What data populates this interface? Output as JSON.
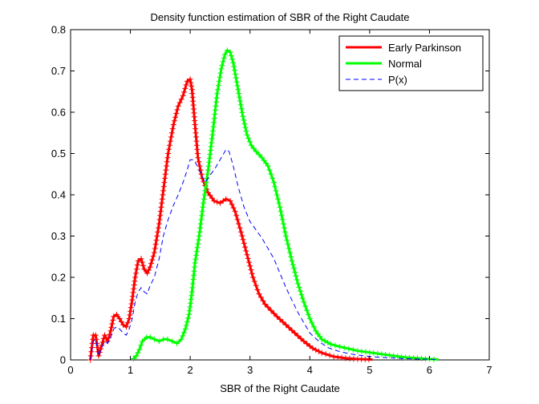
{
  "chart_data": {
    "type": "line",
    "title": "Density function estimation of SBR of the Right Caudate",
    "xlabel": "SBR of the Right Caudate",
    "ylabel": "",
    "xlim": [
      0,
      7
    ],
    "ylim": [
      0,
      0.8
    ],
    "xticks": [
      "0",
      "1",
      "2",
      "3",
      "4",
      "5",
      "6",
      "7"
    ],
    "yticks": [
      "0",
      "0.1",
      "0.2",
      "0.3",
      "0.4",
      "0.5",
      "0.6",
      "0.7",
      "0.8"
    ],
    "grid": false,
    "legend_position": "top-right",
    "series": [
      {
        "name": "Early Parkinson",
        "color": "#ff0000",
        "style": "solid-with-plus-markers",
        "points": [
          [
            0.33,
            0
          ],
          [
            0.38,
            0.06
          ],
          [
            0.42,
            0.06
          ],
          [
            0.47,
            0.01
          ],
          [
            0.52,
            0.035
          ],
          [
            0.57,
            0.06
          ],
          [
            0.62,
            0.045
          ],
          [
            0.67,
            0.07
          ],
          [
            0.72,
            0.105
          ],
          [
            0.77,
            0.11
          ],
          [
            0.82,
            0.1
          ],
          [
            0.88,
            0.085
          ],
          [
            0.93,
            0.08
          ],
          [
            0.98,
            0.1
          ],
          [
            1.03,
            0.145
          ],
          [
            1.08,
            0.2
          ],
          [
            1.13,
            0.24
          ],
          [
            1.18,
            0.245
          ],
          [
            1.23,
            0.22
          ],
          [
            1.28,
            0.21
          ],
          [
            1.33,
            0.225
          ],
          [
            1.4,
            0.26
          ],
          [
            1.48,
            0.33
          ],
          [
            1.55,
            0.41
          ],
          [
            1.63,
            0.5
          ],
          [
            1.72,
            0.57
          ],
          [
            1.8,
            0.615
          ],
          [
            1.88,
            0.64
          ],
          [
            1.95,
            0.675
          ],
          [
            2.0,
            0.68
          ],
          [
            2.03,
            0.655
          ],
          [
            2.08,
            0.57
          ],
          [
            2.13,
            0.49
          ],
          [
            2.2,
            0.44
          ],
          [
            2.3,
            0.405
          ],
          [
            2.4,
            0.385
          ],
          [
            2.5,
            0.38
          ],
          [
            2.6,
            0.39
          ],
          [
            2.67,
            0.385
          ],
          [
            2.75,
            0.36
          ],
          [
            2.85,
            0.31
          ],
          [
            2.95,
            0.255
          ],
          [
            3.05,
            0.2
          ],
          [
            3.15,
            0.16
          ],
          [
            3.25,
            0.135
          ],
          [
            3.35,
            0.12
          ],
          [
            3.45,
            0.105
          ],
          [
            3.6,
            0.085
          ],
          [
            3.75,
            0.065
          ],
          [
            3.9,
            0.045
          ],
          [
            4.05,
            0.028
          ],
          [
            4.2,
            0.017
          ],
          [
            4.4,
            0.008
          ],
          [
            4.6,
            0.004
          ],
          [
            4.8,
            0.002
          ],
          [
            5.05,
            0.001
          ]
        ]
      },
      {
        "name": "Normal",
        "color": "#00ff00",
        "style": "solid-with-plus-markers",
        "points": [
          [
            1.05,
            0.003
          ],
          [
            1.1,
            0.01
          ],
          [
            1.15,
            0.025
          ],
          [
            1.2,
            0.045
          ],
          [
            1.27,
            0.055
          ],
          [
            1.33,
            0.055
          ],
          [
            1.4,
            0.05
          ],
          [
            1.48,
            0.045
          ],
          [
            1.55,
            0.05
          ],
          [
            1.62,
            0.05
          ],
          [
            1.7,
            0.045
          ],
          [
            1.78,
            0.04
          ],
          [
            1.85,
            0.05
          ],
          [
            1.92,
            0.075
          ],
          [
            1.98,
            0.11
          ],
          [
            2.03,
            0.165
          ],
          [
            2.08,
            0.235
          ],
          [
            2.15,
            0.3
          ],
          [
            2.22,
            0.38
          ],
          [
            2.3,
            0.46
          ],
          [
            2.38,
            0.555
          ],
          [
            2.45,
            0.645
          ],
          [
            2.52,
            0.705
          ],
          [
            2.58,
            0.74
          ],
          [
            2.62,
            0.75
          ],
          [
            2.67,
            0.745
          ],
          [
            2.72,
            0.72
          ],
          [
            2.8,
            0.655
          ],
          [
            2.88,
            0.59
          ],
          [
            2.95,
            0.545
          ],
          [
            3.02,
            0.52
          ],
          [
            3.1,
            0.505
          ],
          [
            3.2,
            0.49
          ],
          [
            3.3,
            0.47
          ],
          [
            3.4,
            0.43
          ],
          [
            3.5,
            0.37
          ],
          [
            3.6,
            0.3
          ],
          [
            3.7,
            0.24
          ],
          [
            3.8,
            0.185
          ],
          [
            3.9,
            0.14
          ],
          [
            4.0,
            0.1
          ],
          [
            4.1,
            0.07
          ],
          [
            4.2,
            0.05
          ],
          [
            4.35,
            0.038
          ],
          [
            4.5,
            0.032
          ],
          [
            4.65,
            0.027
          ],
          [
            4.8,
            0.022
          ],
          [
            5.0,
            0.018
          ],
          [
            5.2,
            0.014
          ],
          [
            5.4,
            0.01
          ],
          [
            5.6,
            0.006
          ],
          [
            5.8,
            0.004
          ],
          [
            6.0,
            0.002
          ],
          [
            6.15,
            0.001
          ]
        ]
      },
      {
        "name": "P(x)",
        "color": "#0000ff",
        "style": "dashed",
        "points": [
          [
            0.33,
            0
          ],
          [
            0.38,
            0.045
          ],
          [
            0.42,
            0.05
          ],
          [
            0.47,
            0.01
          ],
          [
            0.52,
            0.03
          ],
          [
            0.57,
            0.045
          ],
          [
            0.62,
            0.04
          ],
          [
            0.67,
            0.055
          ],
          [
            0.72,
            0.075
          ],
          [
            0.77,
            0.08
          ],
          [
            0.82,
            0.075
          ],
          [
            0.88,
            0.065
          ],
          [
            0.93,
            0.06
          ],
          [
            0.98,
            0.075
          ],
          [
            1.03,
            0.1
          ],
          [
            1.08,
            0.14
          ],
          [
            1.13,
            0.165
          ],
          [
            1.18,
            0.175
          ],
          [
            1.23,
            0.165
          ],
          [
            1.28,
            0.16
          ],
          [
            1.33,
            0.18
          ],
          [
            1.4,
            0.2
          ],
          [
            1.48,
            0.245
          ],
          [
            1.55,
            0.3
          ],
          [
            1.63,
            0.34
          ],
          [
            1.72,
            0.375
          ],
          [
            1.8,
            0.4
          ],
          [
            1.88,
            0.43
          ],
          [
            1.95,
            0.46
          ],
          [
            2.0,
            0.485
          ],
          [
            2.05,
            0.485
          ],
          [
            2.1,
            0.475
          ],
          [
            2.18,
            0.45
          ],
          [
            2.25,
            0.43
          ],
          [
            2.32,
            0.445
          ],
          [
            2.42,
            0.465
          ],
          [
            2.52,
            0.49
          ],
          [
            2.6,
            0.51
          ],
          [
            2.65,
            0.505
          ],
          [
            2.72,
            0.47
          ],
          [
            2.8,
            0.42
          ],
          [
            2.9,
            0.37
          ],
          [
            3.0,
            0.335
          ],
          [
            3.1,
            0.315
          ],
          [
            3.2,
            0.295
          ],
          [
            3.3,
            0.27
          ],
          [
            3.4,
            0.245
          ],
          [
            3.5,
            0.21
          ],
          [
            3.6,
            0.175
          ],
          [
            3.7,
            0.145
          ],
          [
            3.8,
            0.115
          ],
          [
            3.9,
            0.09
          ],
          [
            4.0,
            0.065
          ],
          [
            4.15,
            0.045
          ],
          [
            4.3,
            0.03
          ],
          [
            4.5,
            0.02
          ],
          [
            4.7,
            0.014
          ],
          [
            4.9,
            0.01
          ],
          [
            5.1,
            0.007
          ],
          [
            5.35,
            0.005
          ],
          [
            5.6,
            0.003
          ],
          [
            5.9,
            0.002
          ],
          [
            6.15,
            0.001
          ]
        ]
      }
    ]
  }
}
